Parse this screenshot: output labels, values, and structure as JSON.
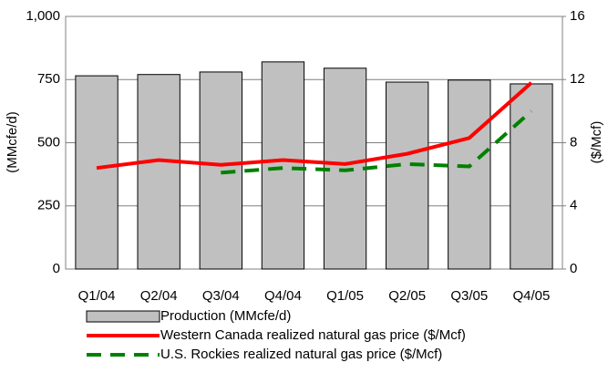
{
  "chart_data": {
    "type": "bar_line",
    "categories": [
      "Q1/04",
      "Q2/04",
      "Q3/04",
      "Q4/04",
      "Q1/05",
      "Q2/05",
      "Q3/05",
      "Q4/05"
    ],
    "ylabel": "(MMcfe/d)",
    "y2label": "($/Mcf)",
    "ylim": [
      0,
      1000
    ],
    "yticks": [
      0,
      250,
      500,
      750,
      {
        "value": 1000,
        "label": "1,000"
      }
    ],
    "y2lim": [
      0,
      16
    ],
    "y2ticks": [
      0,
      4,
      8,
      12,
      16
    ],
    "grid": true,
    "legend": "bottom",
    "series": [
      {
        "name": "Production (MMcfe/d)",
        "kind": "bar",
        "color": "#c0c0c0",
        "values": [
          765,
          770,
          780,
          820,
          795,
          740,
          748,
          733
        ]
      },
      {
        "name": "Western Canada realized natural gas price ($/Mcf)",
        "kind": "line",
        "axis": "y2",
        "color": "#ff0000",
        "values": [
          6.4,
          6.9,
          6.6,
          6.9,
          6.65,
          7.3,
          8.3,
          11.8
        ]
      },
      {
        "name": "U.S. Rockies realized natural gas price ($/Mcf)",
        "kind": "line",
        "dashed": true,
        "axis": "y2",
        "color": "#008000",
        "values": [
          null,
          null,
          6.1,
          6.4,
          6.25,
          6.65,
          6.5,
          10.0
        ]
      }
    ]
  }
}
